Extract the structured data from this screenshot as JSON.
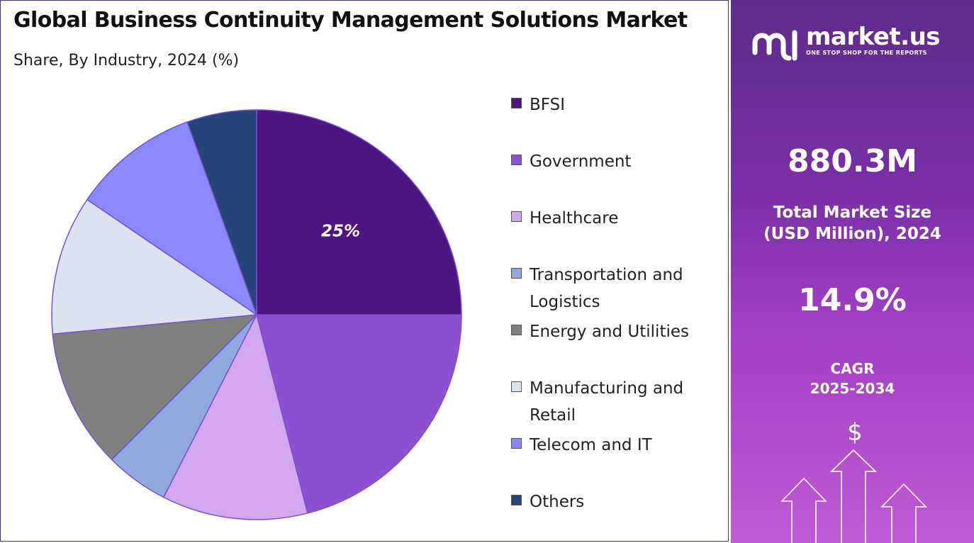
{
  "header": {
    "title": "Global Business Continuity Management Solutions Market",
    "subtitle": "Share, By Industry, 2024 (%)"
  },
  "chart_data": {
    "type": "pie",
    "categories": [
      "BFSI",
      "Government",
      "Healthcare",
      "Transportation and Logistics",
      "Energy and Utilities",
      "Manufacturing and Retail",
      "Telecom and IT",
      "Others"
    ],
    "values": [
      25,
      21,
      11.5,
      5,
      11,
      11,
      10,
      5.5
    ],
    "colors": [
      "#4e1580",
      "#8b51d2",
      "#d3a8ee",
      "#8fa9dc",
      "#808080",
      "#dde2f3",
      "#8a8afc",
      "#25457a"
    ],
    "data_labels": [
      "25%",
      "",
      "",
      "",
      "",
      "",
      "",
      ""
    ],
    "legend_position": "right"
  },
  "legend": {
    "items": [
      {
        "label": "BFSI",
        "color": "#4e1580"
      },
      {
        "label": "Government",
        "color": "#8b51d2"
      },
      {
        "label": "Healthcare",
        "color": "#d3a8ee"
      },
      {
        "label": "Transportation and Logistics",
        "color": "#8fa9dc"
      },
      {
        "label": "Energy and Utilities",
        "color": "#808080"
      },
      {
        "label": "Manufacturing and Retail",
        "color": "#dde2f3"
      },
      {
        "label": "Telecom and IT",
        "color": "#8a8afc"
      },
      {
        "label": "Others",
        "color": "#25457a"
      }
    ]
  },
  "sidebar": {
    "brand": "market.us",
    "tagline": "ONE STOP SHOP FOR THE REPORTS",
    "market_size": "880.3M",
    "market_size_label": "Total Market Size (USD Million), 2024",
    "cagr": "14.9%",
    "cagr_label": "CAGR",
    "cagr_period": "2025-2034",
    "currency_symbol": "$"
  }
}
